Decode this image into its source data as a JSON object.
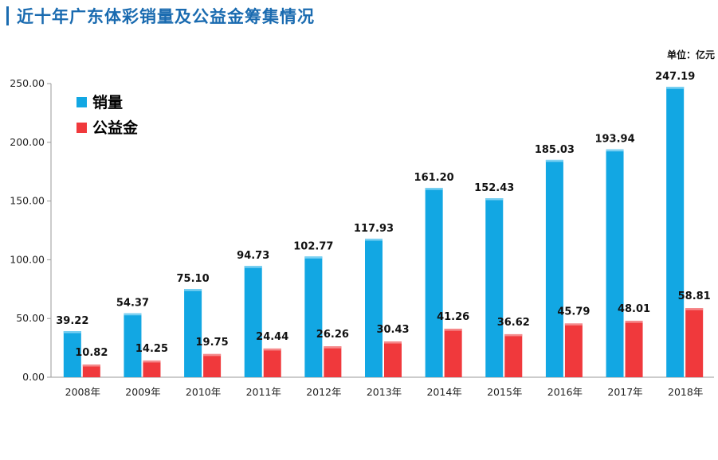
{
  "header": {
    "title": "近十年广东体彩销量及公益金筹集情况"
  },
  "unit_label": "单位：亿元",
  "colors": {
    "sales": "#12a7e3",
    "welfare": "#f0393c",
    "title": "#1a6bb0"
  },
  "chart_data": {
    "type": "bar",
    "categories": [
      "2008年",
      "2009年",
      "2010年",
      "2011年",
      "2012年",
      "2013年",
      "2014年",
      "2015年",
      "2016年",
      "2017年",
      "2018年"
    ],
    "series": [
      {
        "name": "销量",
        "values": [
          39.22,
          54.37,
          75.1,
          94.73,
          102.77,
          117.93,
          161.2,
          152.43,
          185.03,
          193.94,
          247.19
        ]
      },
      {
        "name": "公益金",
        "values": [
          10.82,
          14.25,
          19.75,
          24.44,
          26.26,
          30.43,
          41.26,
          36.62,
          45.79,
          48.01,
          58.81
        ]
      }
    ],
    "ylim": [
      0,
      250
    ],
    "yticks": [
      "0.00",
      "50.00",
      "100.00",
      "150.00",
      "200.00",
      "250.00"
    ],
    "legend_position": "top-left",
    "grid": false
  }
}
